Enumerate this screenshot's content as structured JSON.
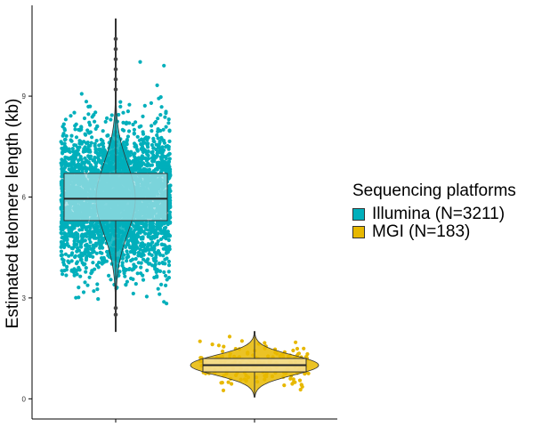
{
  "chart_data": {
    "type": "violin-box-jitter",
    "ylabel": "Estimated telomere length (kb)",
    "ylim": [
      -0.6,
      11.7
    ],
    "yticks": [
      0,
      3,
      6,
      9
    ],
    "ytick_labels": [
      "0",
      "3",
      "6",
      "9"
    ],
    "x_tick_labels": [
      "",
      ""
    ],
    "grid": false,
    "legend": {
      "title": "Sequencing platforms",
      "position": "right",
      "entries": [
        "Illumina (N=3211)",
        "MGI (N=183)"
      ]
    },
    "series": [
      {
        "name": "Illumina (N=3211)",
        "color": "#00AFBB",
        "box_fill": "#99DDE4",
        "n": 3211,
        "median": 5.95,
        "q1": 5.3,
        "q3": 6.7,
        "whisker_low": 2.0,
        "whisker_high": 11.3,
        "min": 2.0,
        "max": 11.3,
        "outliers": [
          2.5,
          2.7,
          9.2,
          9.5,
          9.8,
          10.1,
          10.4,
          10.7
        ]
      },
      {
        "name": "MGI (N=183)",
        "color": "#E7B800",
        "box_fill": "#F6E1A0",
        "n": 183,
        "median": 1.0,
        "q1": 0.8,
        "q3": 1.2,
        "whisker_low": 0.05,
        "whisker_high": 2.0,
        "min": 0.05,
        "max": 2.0,
        "outliers": []
      }
    ]
  }
}
